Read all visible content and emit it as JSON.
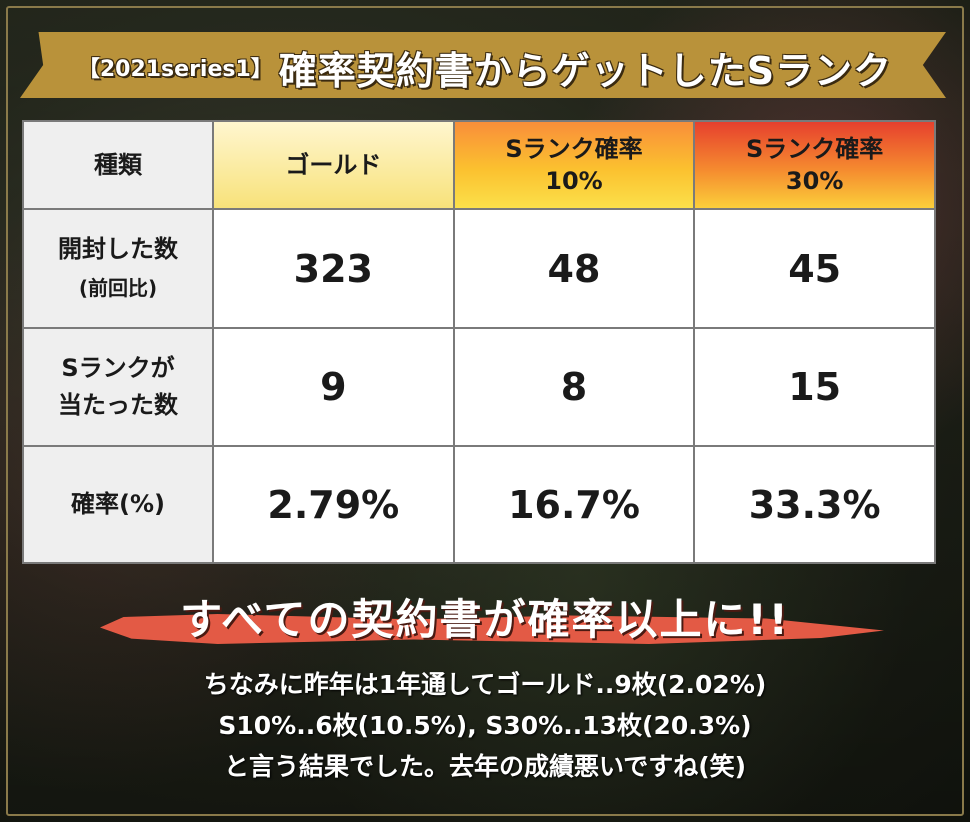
{
  "title": {
    "prefix": "【2021series1】",
    "main": "確率契約書からゲットしたSランク"
  },
  "table": {
    "headers": {
      "label": "種類",
      "gold": "ゴールド",
      "s10_line1": "Sランク確率",
      "s10_line2": "10%",
      "s30_line1": "Sランク確率",
      "s30_line2": "30%"
    },
    "rows": [
      {
        "label_line1": "開封した数",
        "label_line2": "(前回比)",
        "gold": "323",
        "s10": "48",
        "s30": "45"
      },
      {
        "label_line1": "Sランクが",
        "label_line2": "当たった数",
        "gold": "9",
        "s10": "8",
        "s30": "15"
      },
      {
        "label_line1": "確率(%)",
        "gold": "2.79%",
        "s10": "16.7%",
        "s30": "33.3%"
      }
    ]
  },
  "headline": "すべての契約書が確率以上に!!",
  "note": {
    "line1": "ちなみに昨年は1年通してゴールド..9枚(2.02%)",
    "line2": "S10%..6枚(10.5%), S30%..13枚(20.3%)",
    "line3": "と言う結果でした。去年の成績悪いですね(笑)"
  },
  "colors": {
    "banner": "#b9923a",
    "gold_header": "#f7e27a",
    "s10_header": "#fbc12f",
    "s30_header": "#e6402e",
    "brush": "#e35a45"
  }
}
